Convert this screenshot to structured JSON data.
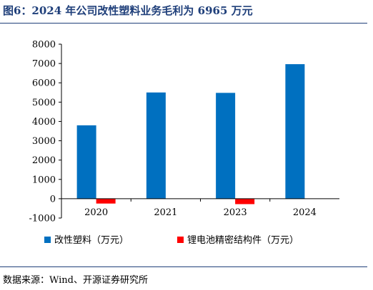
{
  "header": {
    "title": "图6：2024 年公司改性塑料业务毛利为 6965 万元"
  },
  "footer": {
    "source": "数据来源：Wind、开源证券研究所"
  },
  "chart_data": {
    "type": "bar",
    "title": "2024 年公司改性塑料业务毛利为 6965 万元",
    "xlabel": "",
    "ylabel": "",
    "categories": [
      "2020",
      "2021",
      "2023",
      "2024"
    ],
    "series": [
      {
        "name": "改性塑料（万元）",
        "values": [
          3800,
          5500,
          5480,
          6965
        ],
        "color": "#0070c0"
      },
      {
        "name": "锂电池精密结构件（万元）",
        "values": [
          -250,
          0,
          -280,
          0
        ],
        "color": "#ff0000"
      }
    ],
    "ylim": [
      -1000,
      8000
    ],
    "yticks": [
      "8000",
      "7000",
      "6000",
      "5000",
      "4000",
      "3000",
      "2000",
      "1000",
      "0",
      "-1000"
    ],
    "grid": false,
    "legend": "bottom"
  }
}
